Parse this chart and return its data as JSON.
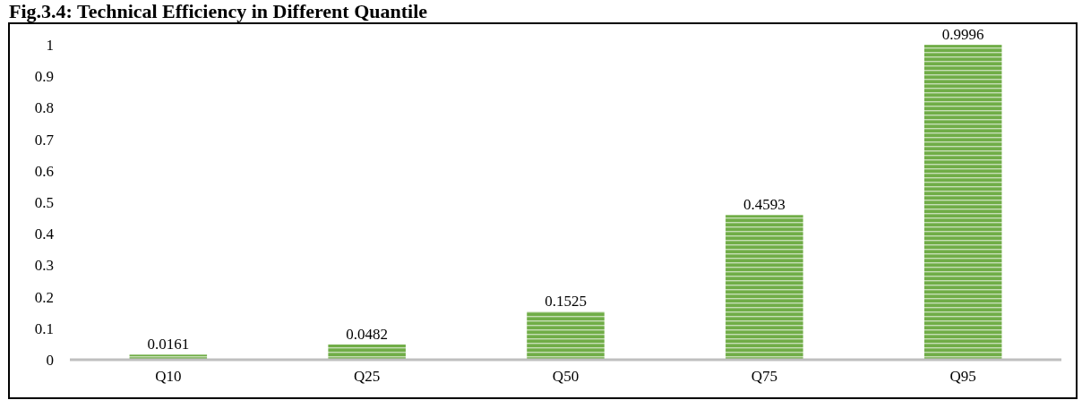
{
  "chart_data": {
    "type": "bar",
    "title": "Fig.3.4: Technical Efficiency in Different Quantile",
    "categories": [
      "Q10",
      "Q25",
      "Q50",
      "Q75",
      "Q95"
    ],
    "values": [
      0.0161,
      0.0482,
      0.1525,
      0.4593,
      0.9996
    ],
    "color": "#70ad47",
    "ylim": [
      0,
      1
    ],
    "yticks": [
      0,
      0.1,
      0.2,
      0.3,
      0.4,
      0.5,
      0.6,
      0.7,
      0.8,
      0.9,
      1
    ],
    "grid": false,
    "data_labels": true
  }
}
